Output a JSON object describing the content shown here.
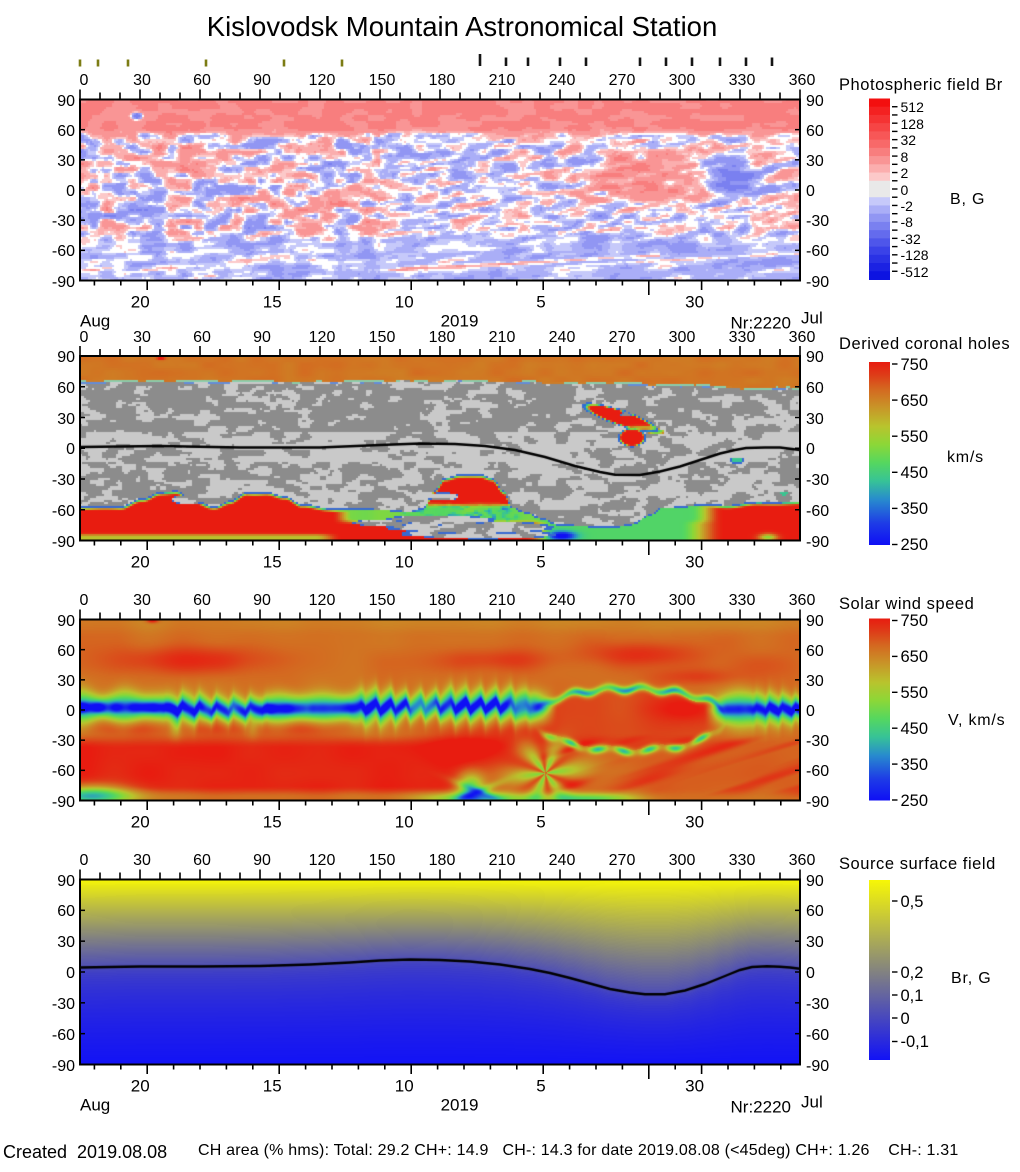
{
  "title": "Kislovodsk Mountain Astronomical Station",
  "footer": {
    "created": "Created  2019.08.08",
    "ch_area": "CH area (% hms): Total: 29.2 CH+: 14.9   CH-: 14.3 for date 2019.08.08 (<45deg) CH+: 1.26    CH-: 1.31"
  },
  "axes": {
    "longitude_tick_labels": [
      0,
      30,
      60,
      90,
      120,
      150,
      180,
      210,
      240,
      270,
      300,
      330,
      360
    ],
    "longitude_minor_step_deg": 10,
    "latitude_tick_labels": [
      90,
      60,
      30,
      0,
      -30,
      -60,
      -90
    ],
    "date_tick_labels": [
      "20",
      "15",
      "10",
      "5",
      "30"
    ],
    "month_left": "Aug",
    "year": "2019",
    "rotation_number": "Nr:2220",
    "month_right": "Jul"
  },
  "event_markers": {
    "olive_ticks_longitude_deg": [
      0,
      9,
      24,
      63,
      102,
      131
    ],
    "black_ticks_longitude_deg": [
      200,
      213,
      224,
      240,
      253,
      280,
      293,
      306,
      320,
      333,
      346
    ],
    "olive_color": "#7c7c14",
    "black_color": "#151515"
  },
  "panels": [
    {
      "name": "photospheric-field",
      "colorbar_title": "Photospheric field Br",
      "unit_label": "B, G",
      "colorbar_tick_labels": [
        "512",
        "128",
        "32",
        "8",
        "2",
        "0",
        "-2",
        "-8",
        "-32",
        "-128",
        "-512"
      ]
    },
    {
      "name": "coronal-holes",
      "colorbar_title": "Derived coronal holes",
      "unit_label": "km/s",
      "colorbar_tick_labels": [
        "750",
        "650",
        "550",
        "450",
        "350",
        "250"
      ]
    },
    {
      "name": "solar-wind-speed",
      "colorbar_title": "Solar wind speed",
      "unit_label": "V, km/s",
      "colorbar_tick_labels": [
        "750",
        "650",
        "550",
        "450",
        "350",
        "250"
      ]
    },
    {
      "name": "source-surface-field",
      "colorbar_title": "Source surface field",
      "unit_label": "Br, G",
      "colorbar_tick_labels": [
        "0,5",
        "0,2",
        "0,1",
        "0",
        "-0,1"
      ]
    }
  ],
  "chart_data": [
    {
      "type": "heatmap",
      "title": "Photospheric field Br",
      "x_axis": {
        "label_ticks_deg": [
          0,
          30,
          60,
          90,
          120,
          150,
          180,
          210,
          240,
          270,
          300,
          330,
          360
        ],
        "range_deg": [
          0,
          360
        ]
      },
      "y_axis": {
        "label_ticks_deg": [
          90,
          60,
          30,
          0,
          -30,
          -60,
          -90
        ],
        "range_deg": [
          -90,
          90
        ]
      },
      "date_axis": {
        "labels": [
          "Aug 20",
          "Aug 15",
          "Aug 10",
          "Aug 5",
          "Jul 30"
        ],
        "year": "2019",
        "rotation": "Nr:2220"
      },
      "value_unit": "B, G",
      "colorbar_scale": [
        512,
        256,
        128,
        64,
        32,
        16,
        8,
        4,
        2,
        1,
        0,
        -1,
        -2,
        -4,
        -8,
        -16,
        -32,
        -64,
        -128,
        -256,
        -512
      ],
      "palette": "red-white-blue discrete",
      "description": "Synoptic map of photospheric radial magnetic field, Carrington rotation 2220; positive (red) polar cap in the north, mottled bipolar regions at mid latitudes, mostly negative (blue) southern hemisphere with diagonal streaks, strong bipole near 280-325 deg"
    },
    {
      "type": "heatmap",
      "title": "Derived coronal holes",
      "x_axis": {
        "range_deg": [
          0,
          360
        ]
      },
      "y_axis": {
        "range_deg": [
          -90,
          90
        ]
      },
      "value_unit": "km/s",
      "colorbar_scale": [
        750,
        650,
        550,
        450,
        350,
        250
      ],
      "palette": "rainbow wind speed inside coronal holes over gray polarity background",
      "north_polar_cap_boundary_deg": 66,
      "neutral_line_deg": [
        [
          0,
          1
        ],
        [
          40,
          1.5
        ],
        [
          80,
          0.8
        ],
        [
          120,
          0.8
        ],
        [
          150,
          2
        ],
        [
          170,
          3
        ],
        [
          188,
          3
        ],
        [
          203,
          1
        ],
        [
          218,
          -2
        ],
        [
          233,
          -8
        ],
        [
          248,
          -16
        ],
        [
          262,
          -23
        ],
        [
          268,
          -26
        ],
        [
          280,
          -26.5
        ],
        [
          290,
          -23
        ],
        [
          300,
          -18
        ],
        [
          310,
          -11
        ],
        [
          320,
          -4
        ],
        [
          328,
          0.5
        ],
        [
          333,
          1.5
        ],
        [
          343,
          1.8
        ],
        [
          350,
          1.8
        ],
        [
          360,
          0.5
        ]
      ],
      "description": "Coronal hole map: orange north polar cap above +66 deg, large fast (red) south polar coronal hole with gray islands, positive CH wedge near 273-290 deg reaching +53 deg, slow (green) CH sector near 280-310 deg south"
    },
    {
      "type": "heatmap",
      "title": "Solar wind speed",
      "x_axis": {
        "range_deg": [
          0,
          360
        ]
      },
      "y_axis": {
        "range_deg": [
          -90,
          90
        ]
      },
      "value_unit": "V, km/s",
      "colorbar_scale": [
        750,
        650,
        550,
        450,
        350,
        250
      ],
      "palette": "rainbow",
      "description": "Smooth solar wind speed map: fast (red-orange ~700 km/s) at high latitudes, slow (blue-green 300-450 km/s) serpentine band along the heliospheric current sheet with sawtooth edges, elliptical lens structure around 235-320 deg, very fast red region in the southern hemisphere 0-190 deg and a fast wedge descending near 195 deg"
    },
    {
      "type": "heatmap",
      "title": "Source surface field",
      "x_axis": {
        "range_deg": [
          0,
          360
        ]
      },
      "y_axis": {
        "range_deg": [
          -90,
          90
        ]
      },
      "value_unit": "Br, G",
      "colorbar_scale": [
        0.5,
        0.2,
        0.1,
        0,
        -0.1
      ],
      "palette": "yellow-gray-blue",
      "neutral_line_deg": [
        [
          0,
          2
        ],
        [
          30,
          2.5
        ],
        [
          60,
          2.5
        ],
        [
          90,
          3
        ],
        [
          115,
          4
        ],
        [
          135,
          5
        ],
        [
          150,
          5.5
        ],
        [
          180,
          5
        ],
        [
          195,
          4
        ],
        [
          210,
          2
        ],
        [
          220,
          0
        ],
        [
          235,
          -5
        ],
        [
          250,
          -10
        ],
        [
          265,
          -16
        ],
        [
          275,
          -19
        ],
        [
          283,
          -21.5
        ],
        [
          293,
          -21.5
        ],
        [
          303,
          -19
        ],
        [
          313,
          -13
        ],
        [
          323,
          -7
        ],
        [
          330,
          -1
        ],
        [
          336,
          2
        ],
        [
          344,
          3.4
        ],
        [
          350,
          3
        ],
        [
          355,
          2.5
        ],
        [
          360,
          0.5
        ]
      ],
      "description": "Source surface (2.5 Rs) radial field: positive (yellow) northern hemisphere, negative (blue) southern hemisphere, separated by the neutral line"
    }
  ],
  "layout_note": "x axis: Carrington longitude 0-360 deg (top); bottom axis: dates Aug 20 .. Jul 30, 2019, Carrington rotation Nr:2220"
}
